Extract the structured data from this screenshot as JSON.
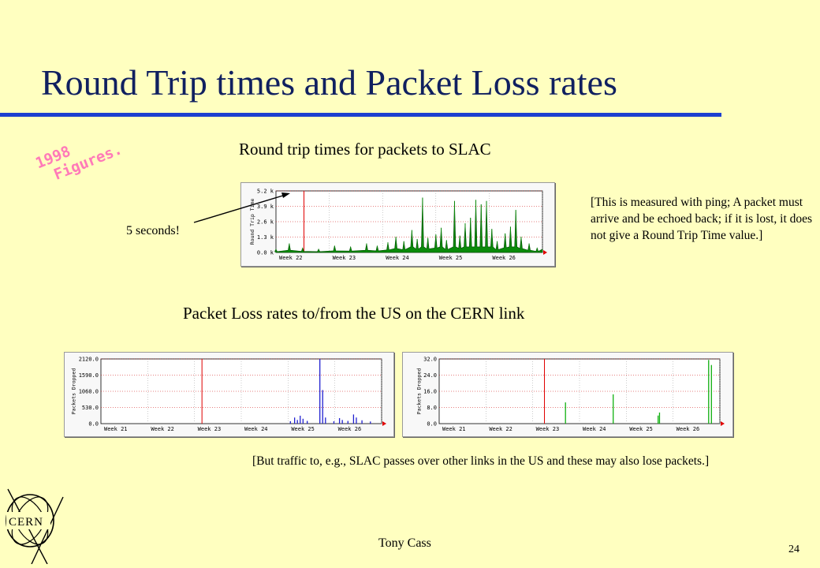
{
  "slide": {
    "title": "Round Trip times and Packet Loss rates",
    "stamp_line1": "1998",
    "stamp_line2": "Figures.",
    "rtt_caption": "Round trip times for packets to SLAC",
    "loss_caption": "Packet Loss rates to/from the US on the CERN link",
    "five_seconds": "5 seconds!",
    "rtt_note": "[This is measured with ping; A packet must arrive and be echoed back; if it is lost, it does not give a Round Trip Time value.]",
    "loss_note": "[But traffic to, e.g., SLAC passes over other links in the US and these may also lose packets.]",
    "author": "Tony Cass",
    "page_number": "24",
    "logo_text": "CERN"
  },
  "chart_data": [
    {
      "type": "area",
      "ylabel": "Round Trip Time",
      "yticks": [
        "0.0 k",
        "1.3 k",
        "2.6 k",
        "3.9 k",
        "5.2 k"
      ],
      "ylim": [
        0,
        5.5
      ],
      "xticks": [
        "Week 22",
        "Week 23",
        "Week 24",
        "Week 25",
        "Week 26"
      ],
      "series_color": "#0a8a0a",
      "marker_color": "#e00000",
      "marker_position": 0.105,
      "peaks": [
        [
          0.0,
          0.3
        ],
        [
          0.05,
          0.8
        ],
        [
          0.1,
          0.4
        ],
        [
          0.16,
          0.3
        ],
        [
          0.22,
          0.6
        ],
        [
          0.28,
          0.5
        ],
        [
          0.34,
          0.8
        ],
        [
          0.38,
          0.6
        ],
        [
          0.42,
          0.9
        ],
        [
          0.45,
          1.4
        ],
        [
          0.48,
          1.0
        ],
        [
          0.51,
          2.0
        ],
        [
          0.53,
          1.2
        ],
        [
          0.55,
          4.9
        ],
        [
          0.57,
          1.3
        ],
        [
          0.6,
          1.6
        ],
        [
          0.62,
          2.2
        ],
        [
          0.64,
          1.1
        ],
        [
          0.67,
          4.6
        ],
        [
          0.69,
          1.5
        ],
        [
          0.71,
          2.6
        ],
        [
          0.73,
          3.1
        ],
        [
          0.75,
          4.7
        ],
        [
          0.77,
          4.3
        ],
        [
          0.79,
          4.6
        ],
        [
          0.81,
          2.1
        ],
        [
          0.83,
          1.0
        ],
        [
          0.86,
          1.7
        ],
        [
          0.88,
          2.3
        ],
        [
          0.9,
          3.8
        ],
        [
          0.92,
          1.4
        ],
        [
          0.95,
          0.8
        ],
        [
          0.98,
          0.4
        ]
      ],
      "grid": true
    },
    {
      "type": "bar",
      "ylabel": "Packets Dropped",
      "yticks": [
        "0.0",
        "530.0",
        "1060.0",
        "1590.0",
        "2120.0"
      ],
      "ylim": [
        0,
        2120
      ],
      "xticks": [
        "Week 21",
        "Week 22",
        "Week 23",
        "Week 24",
        "Week 25",
        "Week 26"
      ],
      "series_color": "#2020d0",
      "marker_color": "#e00000",
      "marker_position": 0.36,
      "spikes": [
        [
          0.675,
          80
        ],
        [
          0.69,
          200
        ],
        [
          0.7,
          120
        ],
        [
          0.71,
          260
        ],
        [
          0.72,
          160
        ],
        [
          0.735,
          90
        ],
        [
          0.78,
          2120
        ],
        [
          0.79,
          1100
        ],
        [
          0.8,
          200
        ],
        [
          0.83,
          80
        ],
        [
          0.85,
          180
        ],
        [
          0.86,
          120
        ],
        [
          0.88,
          90
        ],
        [
          0.9,
          300
        ],
        [
          0.91,
          200
        ],
        [
          0.93,
          110
        ],
        [
          0.96,
          70
        ]
      ],
      "grid": true
    },
    {
      "type": "bar",
      "ylabel": "Packets Dropped",
      "yticks": [
        "0.0",
        "8.0",
        "16.0",
        "24.0",
        "32.0"
      ],
      "ylim": [
        0,
        32
      ],
      "xticks": [
        "Week 21",
        "Week 22",
        "Week 23",
        "Week 24",
        "Week 25",
        "Week 26"
      ],
      "series_color": "#10b010",
      "marker_color": "#e00000",
      "marker_position": 0.375,
      "spikes": [
        [
          0.45,
          10.5
        ],
        [
          0.62,
          14.5
        ],
        [
          0.78,
          4.0
        ],
        [
          0.785,
          5.5
        ],
        [
          0.96,
          31.5
        ],
        [
          0.97,
          29.0
        ]
      ],
      "grid": true
    }
  ]
}
